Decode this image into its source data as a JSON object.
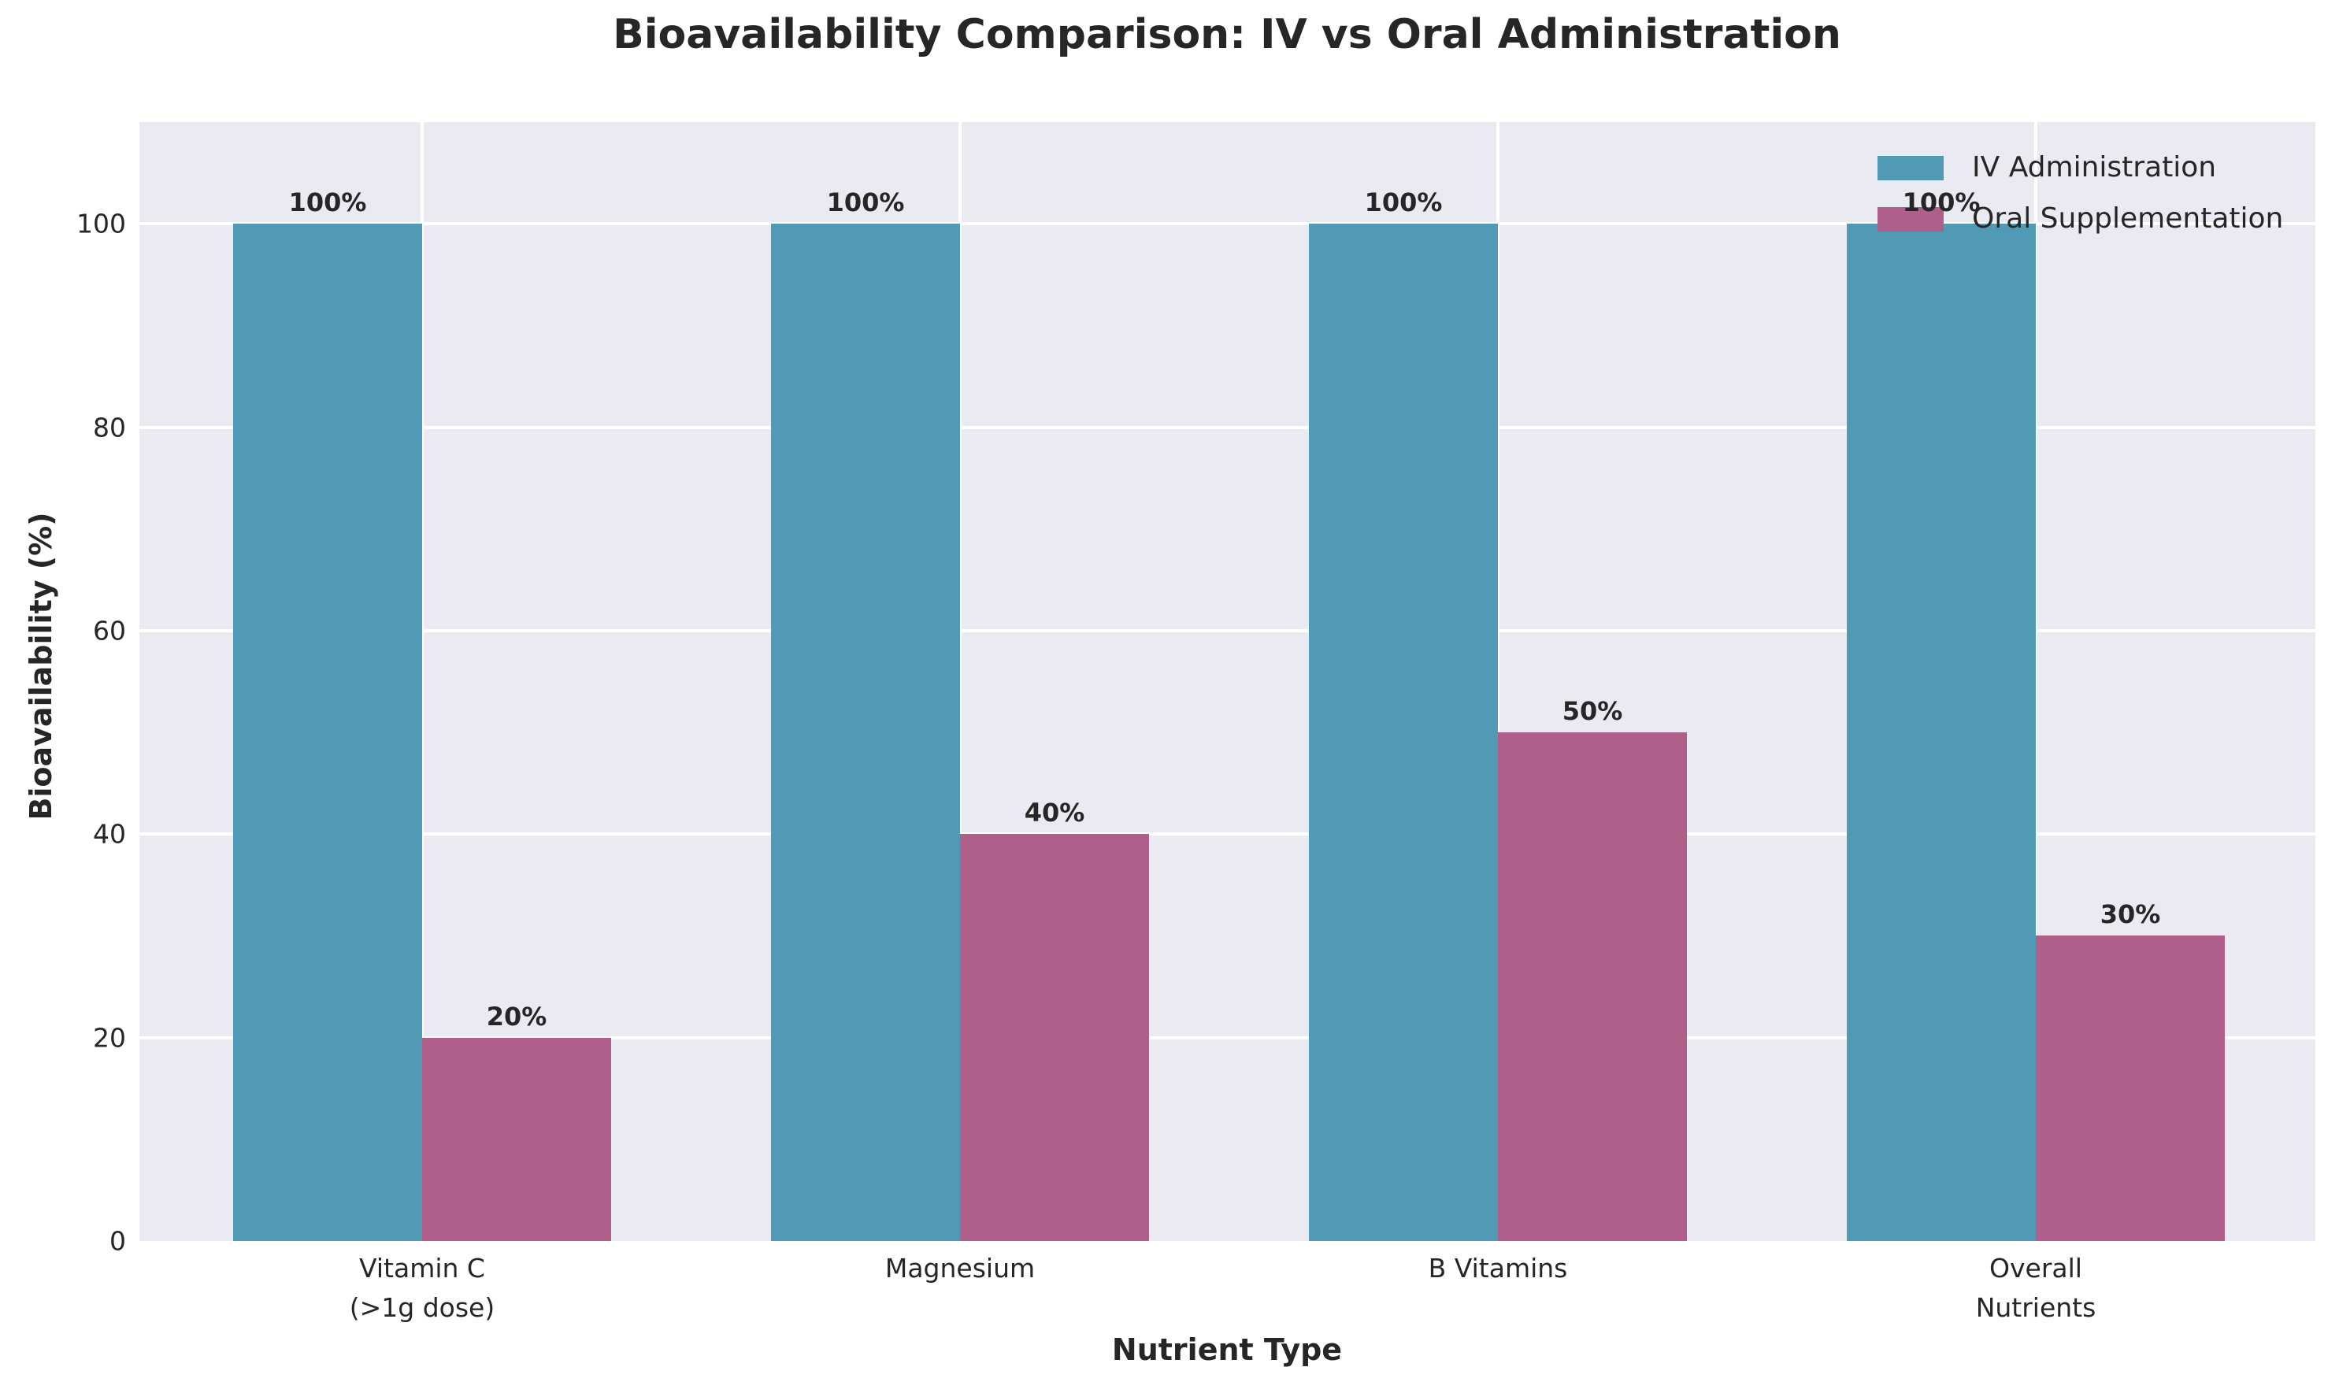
{
  "chart_data": {
    "type": "bar",
    "title": "Bioavailability Comparison: IV vs Oral Administration",
    "xlabel": "Nutrient Type",
    "ylabel": "Bioavailability (%)",
    "categories": [
      "Vitamin C\n(>1g dose)",
      "Magnesium",
      "B Vitamins",
      "Overall\nNutrients"
    ],
    "series": [
      {
        "name": "IV Administration",
        "color": "#509AB5",
        "values": [
          100,
          100,
          100,
          100
        ],
        "bar_labels": [
          "100%",
          "100%",
          "100%",
          "100%"
        ]
      },
      {
        "name": "Oral Supplementation",
        "color": "#B05F8B",
        "values": [
          20,
          40,
          50,
          30
        ],
        "bar_labels": [
          "20%",
          "40%",
          "50%",
          "30%"
        ]
      }
    ],
    "yticks": [
      0,
      20,
      40,
      60,
      80,
      100
    ],
    "ylim": [
      0,
      110
    ],
    "grid": true,
    "legend_position": "upper-right",
    "plot_background": "#EAEAF2",
    "grid_color": "#FFFFFF",
    "text_color": "#262626",
    "figure_background": "#FFFFFF"
  }
}
